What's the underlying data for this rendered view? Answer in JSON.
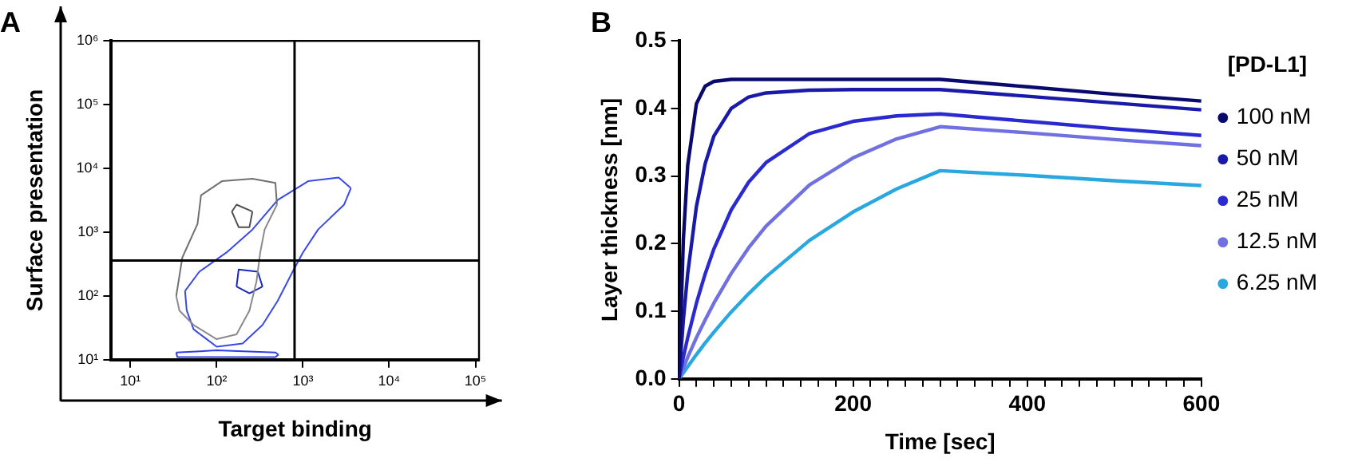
{
  "chart_data": [
    {
      "type": "line",
      "title": "A",
      "xlabel": "Target binding",
      "ylabel": "Surface presentation",
      "log": "xy",
      "marker": "none",
      "grid": false,
      "legend": false,
      "xlim": [
        6,
        110000
      ],
      "ylim": [
        10,
        1000000
      ],
      "xticks": [
        {
          "value": 10,
          "label": "10¹"
        },
        {
          "value": 100,
          "label": "10²"
        },
        {
          "value": 1000,
          "label": "10³"
        },
        {
          "value": 10000,
          "label": "10⁴"
        },
        {
          "value": 100000,
          "label": "10⁵"
        }
      ],
      "yticks": [
        {
          "value": 10,
          "label": "10¹"
        },
        {
          "value": 100,
          "label": "10²"
        },
        {
          "value": 1000,
          "label": "10³"
        },
        {
          "value": 10000,
          "label": "10⁴"
        },
        {
          "value": 100000,
          "label": "10⁵"
        },
        {
          "value": 1000000,
          "label": "10⁶"
        }
      ],
      "ref_lines": [
        {
          "axis": "x",
          "value": 800,
          "color": "#000000"
        },
        {
          "axis": "y",
          "value": 360,
          "color": "#000000"
        }
      ],
      "series": [
        {
          "color": "#707070",
          "x": [
            34,
            40,
            60,
            66,
            115,
            260,
            480,
            500
          ],
          "values": [
            100,
            400,
            1350,
            3800,
            6300,
            6900,
            5900,
            2700
          ]
        },
        {
          "color": "#8a8a8a",
          "x": [
            34,
            37,
            54,
            100,
            170,
            240,
            290,
            320,
            360,
            500
          ],
          "values": [
            100,
            59,
            35,
            21,
            25,
            59,
            170,
            480,
            1100,
            2700
          ]
        },
        {
          "color": "#505050",
          "x": [
            150,
            170,
            260
          ],
          "values": [
            2100,
            2700,
            2100
          ]
        },
        {
          "color": "#505050",
          "x": [
            150,
            180,
            240,
            260
          ],
          "values": [
            2100,
            1200,
            1200,
            2100
          ]
        },
        {
          "color": "#3a4ae8",
          "x": [
            43,
            63,
            130,
            260,
            510,
            1150,
            2600,
            3600
          ],
          "values": [
            120,
            240,
            480,
            1100,
            3200,
            6300,
            7200,
            4900
          ]
        },
        {
          "color": "#3a4ae8",
          "x": [
            43,
            45,
            54,
            100,
            200,
            340,
            510,
            760,
            1000,
            1500,
            3000,
            3600
          ],
          "values": [
            120,
            59,
            30,
            16,
            18,
            35,
            84,
            240,
            480,
            1100,
            2700,
            4900
          ]
        },
        {
          "color": "#1a28c0",
          "x": [
            170,
            180,
            300,
            340
          ],
          "values": [
            140,
            260,
            240,
            140
          ]
        },
        {
          "color": "#1a28c0",
          "x": [
            170,
            240,
            340
          ],
          "values": [
            140,
            110,
            140
          ]
        },
        {
          "color": "#2f3fe0",
          "x": [
            34,
            100,
            480,
            520
          ],
          "values": [
            13,
            14,
            13,
            12
          ]
        },
        {
          "color": "#2f3fe0",
          "x": [
            34,
            35,
            480,
            520
          ],
          "values": [
            13,
            11,
            11,
            12
          ]
        }
      ]
    },
    {
      "type": "line",
      "title": "B",
      "xlabel": "Time [sec]",
      "ylabel": "Layer thickness [nm]",
      "legend_title": "[PD-L1]",
      "legend": "right",
      "marker": "none",
      "grid": false,
      "xlim": [
        0,
        600
      ],
      "ylim": [
        0,
        0.5
      ],
      "xticks": [
        0,
        {
          "value": 20,
          "label": null
        },
        {
          "value": 40,
          "label": null
        },
        {
          "value": 60,
          "label": null
        },
        {
          "value": 80,
          "label": null
        },
        {
          "value": 100,
          "label": null
        },
        {
          "value": 120,
          "label": null
        },
        {
          "value": 140,
          "label": null
        },
        {
          "value": 160,
          "label": null
        },
        {
          "value": 180,
          "label": null
        },
        200,
        {
          "value": 220,
          "label": null
        },
        {
          "value": 240,
          "label": null
        },
        {
          "value": 260,
          "label": null
        },
        {
          "value": 280,
          "label": null
        },
        {
          "value": 300,
          "label": null
        },
        {
          "value": 320,
          "label": null
        },
        {
          "value": 340,
          "label": null
        },
        {
          "value": 360,
          "label": null
        },
        {
          "value": 380,
          "label": null
        },
        400,
        {
          "value": 420,
          "label": null
        },
        {
          "value": 440,
          "label": null
        },
        {
          "value": 460,
          "label": null
        },
        {
          "value": 480,
          "label": null
        },
        {
          "value": 500,
          "label": null
        },
        {
          "value": 520,
          "label": null
        },
        {
          "value": 540,
          "label": null
        },
        {
          "value": 560,
          "label": null
        },
        {
          "value": 580,
          "label": null
        },
        600
      ],
      "yticks": [
        {
          "value": 0,
          "label": "0.0"
        },
        0.1,
        0.2,
        0.3,
        0.4,
        0.5
      ],
      "x": [
        0,
        5,
        10,
        20,
        30,
        40,
        60,
        80,
        100,
        150,
        200,
        250,
        300,
        400,
        500,
        600
      ],
      "series": [
        {
          "name": "100 nM",
          "color": "#0a0a6e",
          "values": [
            0,
            0.206,
            0.316,
            0.407,
            0.433,
            0.44,
            0.443,
            0.443,
            0.443,
            0.443,
            0.443,
            0.443,
            0.443,
            0.432,
            0.421,
            0.411
          ]
        },
        {
          "name": "50 nM",
          "color": "#1a1aa8",
          "values": [
            0,
            0.087,
            0.156,
            0.255,
            0.318,
            0.359,
            0.4,
            0.417,
            0.423,
            0.427,
            0.428,
            0.428,
            0.428,
            0.418,
            0.408,
            0.398
          ]
        },
        {
          "name": "25 nM",
          "color": "#2a2ad0",
          "values": [
            0,
            0.032,
            0.061,
            0.112,
            0.155,
            0.192,
            0.25,
            0.291,
            0.32,
            0.363,
            0.381,
            0.389,
            0.392,
            0.381,
            0.37,
            0.36
          ]
        },
        {
          "name": "12.5 nM",
          "color": "#7070e0",
          "values": [
            0,
            0.016,
            0.032,
            0.061,
            0.087,
            0.112,
            0.156,
            0.194,
            0.226,
            0.287,
            0.327,
            0.355,
            0.373,
            0.364,
            0.354,
            0.345
          ]
        },
        {
          "name": "6.25 nM",
          "color": "#29a8e0",
          "values": [
            0,
            0.009,
            0.018,
            0.036,
            0.053,
            0.069,
            0.099,
            0.126,
            0.151,
            0.205,
            0.247,
            0.281,
            0.308,
            0.301,
            0.293,
            0.286
          ]
        }
      ]
    }
  ]
}
